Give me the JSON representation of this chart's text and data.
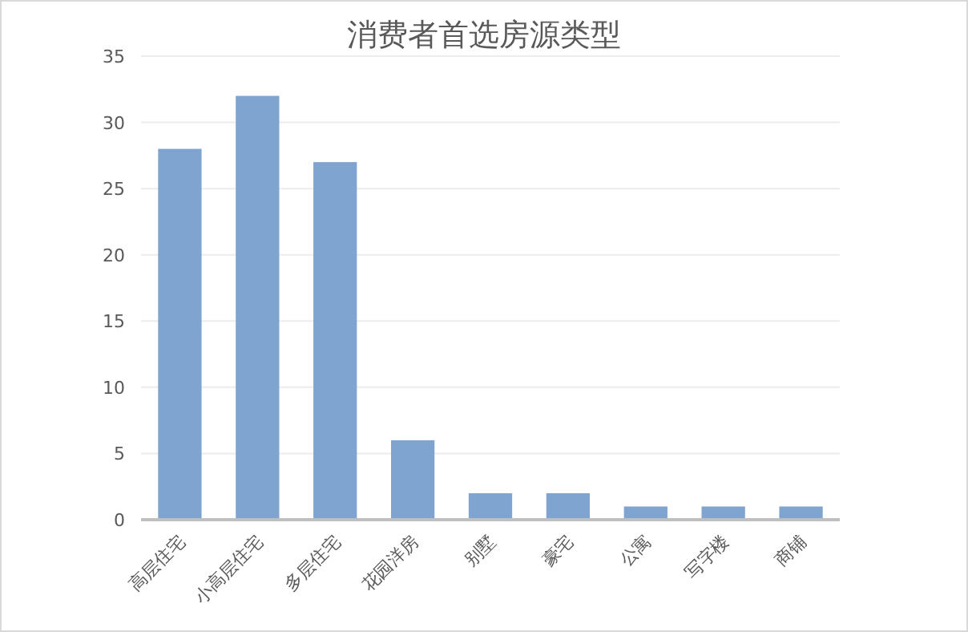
{
  "chart_data": {
    "type": "bar",
    "title": "消费者首选房源类型",
    "categories": [
      "高层住宅",
      "小高层住宅",
      "多层住宅",
      "花园洋房",
      "别墅",
      "豪宅",
      "公寓",
      "写字楼",
      "商铺"
    ],
    "values": [
      28,
      32,
      27,
      6,
      2,
      2,
      1,
      1,
      1
    ],
    "color": "#7fa4d0",
    "ylim": [
      0,
      35
    ],
    "yticks": [
      0,
      5,
      10,
      15,
      20,
      25,
      30,
      35
    ],
    "grid": "y"
  }
}
